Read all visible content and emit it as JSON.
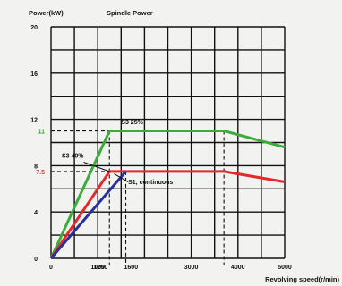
{
  "chart_data": {
    "type": "line",
    "title": "Spindle Power",
    "ylabel": "Power(kW)",
    "xlabel": "Revolving speed(r/min)",
    "xlim": [
      0,
      5000
    ],
    "ylim": [
      0,
      20
    ],
    "grid": true,
    "x_ticks": [
      {
        "value": 0,
        "label": "0"
      },
      {
        "value": 1000,
        "label": "1000"
      },
      {
        "value": 1250,
        "label": "1250"
      },
      {
        "value": 1600,
        "label": "1600"
      },
      {
        "value": 3000,
        "label": "3000"
      },
      {
        "value": 4000,
        "label": "4000"
      },
      {
        "value": 5000,
        "label": "5000"
      }
    ],
    "y_ticks": [
      {
        "value": 0,
        "label": "0"
      },
      {
        "value": 4,
        "label": "4"
      },
      {
        "value": 8,
        "label": "8"
      },
      {
        "value": 12,
        "label": "12"
      },
      {
        "value": 16,
        "label": "16"
      },
      {
        "value": 20,
        "label": "20"
      }
    ],
    "special_y_ticks": [
      {
        "value": 11,
        "label": "11",
        "color": "#3a9a3a"
      },
      {
        "value": 7.5,
        "label": "7.5",
        "color": "#e0303c"
      }
    ],
    "series": [
      {
        "color": "#3cab3c",
        "points": [
          [
            0,
            0
          ],
          [
            1250,
            11
          ],
          [
            3700,
            11
          ],
          [
            5000,
            9.6
          ]
        ]
      },
      {
        "color": "#e12b2b",
        "points": [
          [
            0,
            0
          ],
          [
            1250,
            7.5
          ],
          [
            3700,
            7.5
          ],
          [
            5000,
            6.6
          ]
        ]
      },
      {
        "color": "#2b2f9e",
        "points": [
          [
            0,
            0
          ],
          [
            1600,
            7.5
          ]
        ]
      }
    ],
    "annotations": [
      {
        "text": "S3 25%",
        "x": 1500,
        "y": 11.6
      },
      {
        "text": "S3 40%",
        "x": 230,
        "y": 8.7
      },
      {
        "text": "S1, continuous",
        "x": 1650,
        "y": 6.4
      }
    ]
  }
}
